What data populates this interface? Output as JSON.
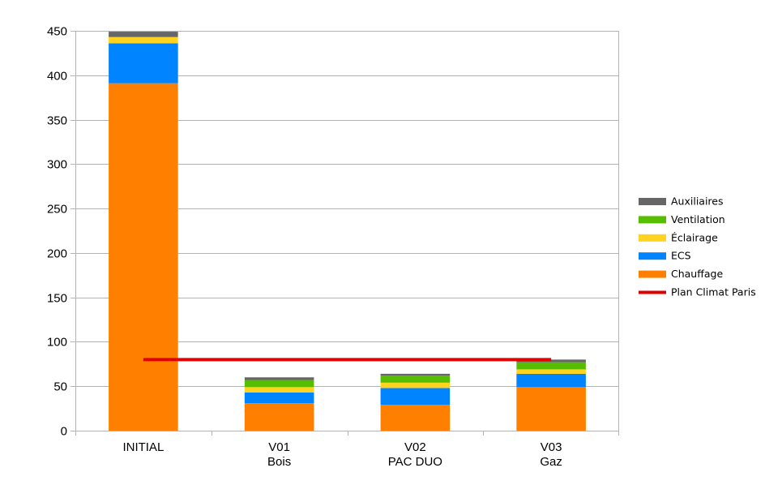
{
  "chart_data": {
    "type": "bar",
    "stacked": true,
    "categories": [
      [
        "INITIAL"
      ],
      [
        "V01",
        "Bois"
      ],
      [
        "V02",
        "PAC DUO"
      ],
      [
        "V03",
        "Gaz"
      ]
    ],
    "series": [
      {
        "name": "Chauffage",
        "color": "#ff8000",
        "values": [
          391,
          31,
          29,
          49
        ]
      },
      {
        "name": "ECS",
        "color": "#0084ff",
        "values": [
          45,
          12,
          19,
          15
        ]
      },
      {
        "name": "Éclairage",
        "color": "#ffd320",
        "values": [
          7,
          6,
          6,
          5
        ]
      },
      {
        "name": "Ventilation",
        "color": "#57bd00",
        "values": [
          0,
          8,
          8,
          8
        ]
      },
      {
        "name": "Auxiliaires",
        "color": "#666666",
        "values": [
          6,
          3,
          2,
          3
        ]
      }
    ],
    "reference_line": {
      "name": "Plan Climat Paris",
      "color": "#e00000",
      "value": 80
    },
    "ylim": [
      0,
      450
    ],
    "yticks": [
      0,
      50,
      100,
      150,
      200,
      250,
      300,
      350,
      400,
      450
    ],
    "grid": true,
    "legend_position": "right",
    "title": "",
    "xlabel": "",
    "ylabel": ""
  }
}
